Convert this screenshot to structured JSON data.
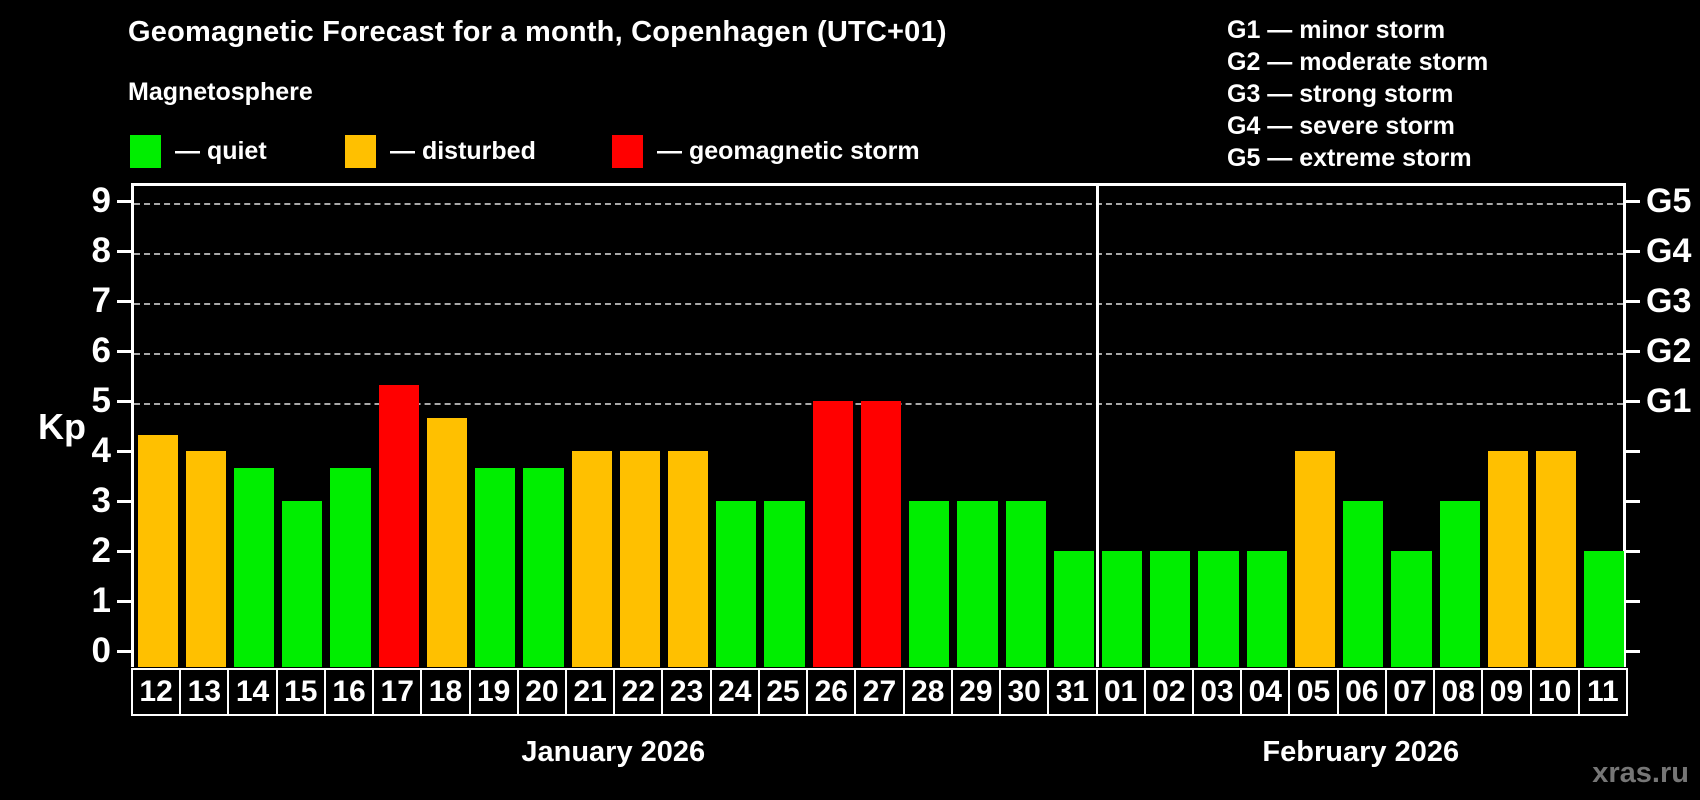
{
  "title": "Geomagnetic Forecast for a month, Copenhagen (UTC+01)",
  "subtitle": "Magnetosphere",
  "legend": {
    "items": [
      {
        "name": "quiet",
        "label": "— quiet",
        "color": "#00ee00"
      },
      {
        "name": "disturbed",
        "label": "— disturbed",
        "color": "#ffc000"
      },
      {
        "name": "geomagnetic-storm",
        "label": "— geomagnetic storm",
        "color": "#ff0000"
      }
    ]
  },
  "g_scale_legend": [
    "G1 — minor storm",
    "G2 — moderate storm",
    "G3 — strong storm",
    "G4 — severe storm",
    "G5 — extreme storm"
  ],
  "watermark": "xras.ru",
  "colors": {
    "quiet": "#00ee00",
    "disturbed": "#ffc000",
    "geomagnetic-storm": "#ff0000",
    "grid": "#a8a8a8",
    "axis": "#ffffff",
    "background": "#000000"
  },
  "chart_data": {
    "type": "bar",
    "title": "Geomagnetic Forecast for a month, Copenhagen (UTC+01)",
    "ylabel": "Kp",
    "ylim": [
      0,
      9
    ],
    "yticks": [
      0,
      1,
      2,
      3,
      4,
      5,
      6,
      7,
      8,
      9
    ],
    "gridlines_at_kp": [
      5,
      6,
      7,
      8,
      9
    ],
    "grid": "dashed horizontal at G-storm levels only",
    "legend_position": "top-left (status colors), top-right (G scale)",
    "right_axis_labels": [
      {
        "label": "G1",
        "kp": 5
      },
      {
        "label": "G2",
        "kp": 6
      },
      {
        "label": "G3",
        "kp": 7
      },
      {
        "label": "G4",
        "kp": 8
      },
      {
        "label": "G5",
        "kp": 9
      }
    ],
    "months": [
      {
        "label": "January 2026",
        "days": 20
      },
      {
        "label": "February 2026",
        "days": 11
      }
    ],
    "bars": [
      {
        "day": "12",
        "month": "January 2026",
        "kp": 4.33,
        "status": "disturbed"
      },
      {
        "day": "13",
        "month": "January 2026",
        "kp": 4.0,
        "status": "disturbed"
      },
      {
        "day": "14",
        "month": "January 2026",
        "kp": 3.67,
        "status": "quiet"
      },
      {
        "day": "15",
        "month": "January 2026",
        "kp": 3.0,
        "status": "quiet"
      },
      {
        "day": "16",
        "month": "January 2026",
        "kp": 3.67,
        "status": "quiet"
      },
      {
        "day": "17",
        "month": "January 2026",
        "kp": 5.33,
        "status": "geomagnetic-storm"
      },
      {
        "day": "18",
        "month": "January 2026",
        "kp": 4.67,
        "status": "disturbed"
      },
      {
        "day": "19",
        "month": "January 2026",
        "kp": 3.67,
        "status": "quiet"
      },
      {
        "day": "20",
        "month": "January 2026",
        "kp": 3.67,
        "status": "quiet"
      },
      {
        "day": "21",
        "month": "January 2026",
        "kp": 4.0,
        "status": "disturbed"
      },
      {
        "day": "22",
        "month": "January 2026",
        "kp": 4.0,
        "status": "disturbed"
      },
      {
        "day": "23",
        "month": "January 2026",
        "kp": 4.0,
        "status": "disturbed"
      },
      {
        "day": "24",
        "month": "January 2026",
        "kp": 3.0,
        "status": "quiet"
      },
      {
        "day": "25",
        "month": "January 2026",
        "kp": 3.0,
        "status": "quiet"
      },
      {
        "day": "26",
        "month": "January 2026",
        "kp": 5.0,
        "status": "geomagnetic-storm"
      },
      {
        "day": "27",
        "month": "January 2026",
        "kp": 5.0,
        "status": "geomagnetic-storm"
      },
      {
        "day": "28",
        "month": "January 2026",
        "kp": 3.0,
        "status": "quiet"
      },
      {
        "day": "29",
        "month": "January 2026",
        "kp": 3.0,
        "status": "quiet"
      },
      {
        "day": "30",
        "month": "January 2026",
        "kp": 3.0,
        "status": "quiet"
      },
      {
        "day": "31",
        "month": "January 2026",
        "kp": 2.0,
        "status": "quiet"
      },
      {
        "day": "01",
        "month": "February 2026",
        "kp": 2.0,
        "status": "quiet"
      },
      {
        "day": "02",
        "month": "February 2026",
        "kp": 2.0,
        "status": "quiet"
      },
      {
        "day": "03",
        "month": "February 2026",
        "kp": 2.0,
        "status": "quiet"
      },
      {
        "day": "04",
        "month": "February 2026",
        "kp": 2.0,
        "status": "quiet"
      },
      {
        "day": "05",
        "month": "February 2026",
        "kp": 4.0,
        "status": "disturbed"
      },
      {
        "day": "06",
        "month": "February 2026",
        "kp": 3.0,
        "status": "quiet"
      },
      {
        "day": "07",
        "month": "February 2026",
        "kp": 2.0,
        "status": "quiet"
      },
      {
        "day": "08",
        "month": "February 2026",
        "kp": 3.0,
        "status": "quiet"
      },
      {
        "day": "09",
        "month": "February 2026",
        "kp": 4.0,
        "status": "disturbed"
      },
      {
        "day": "10",
        "month": "February 2026",
        "kp": 4.0,
        "status": "disturbed"
      },
      {
        "day": "11",
        "month": "February 2026",
        "kp": 2.0,
        "status": "quiet"
      }
    ]
  }
}
